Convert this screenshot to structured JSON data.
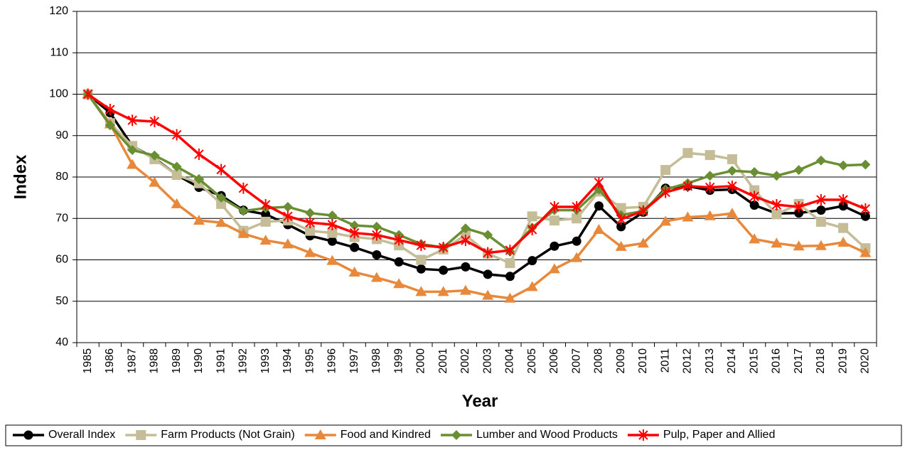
{
  "chart_data": {
    "type": "line",
    "x_label": "Year",
    "y_label": "Index",
    "categories": [
      "1985",
      "1986",
      "1987",
      "1988",
      "1989",
      "1990",
      "1991",
      "1992",
      "1993",
      "1994",
      "1995",
      "1996",
      "1997",
      "1998",
      "1999",
      "2000",
      "2001",
      "2002",
      "2003",
      "2004",
      "2005",
      "2006",
      "2007",
      "2008",
      "2009",
      "2010",
      "2011",
      "2012",
      "2013",
      "2014",
      "2015",
      "2016",
      "2017",
      "2018",
      "2019",
      "2020"
    ],
    "ylim": [
      40,
      120
    ],
    "yticks": [
      40,
      50,
      60,
      70,
      80,
      90,
      100,
      110,
      120
    ],
    "grid": true,
    "legend": "bottom",
    "series": [
      {
        "name": "Overall Index",
        "color": "#000000",
        "marker": "circle",
        "values": [
          100,
          95.5,
          87.5,
          84.5,
          80.5,
          77.5,
          75.5,
          72,
          71,
          68.5,
          65.8,
          64.5,
          63,
          61.2,
          59.5,
          57.8,
          57.5,
          58.3,
          56.5,
          56,
          59.8,
          63.3,
          64.5,
          73,
          68,
          71.5,
          77.3,
          77.8,
          76.8,
          77,
          73.2,
          71.2,
          71.3,
          72,
          73,
          70.5
        ]
      },
      {
        "name": "Farm Products (Not Grain)",
        "color": "#c4bd97",
        "marker": "square",
        "values": [
          100,
          93,
          87.5,
          84.3,
          80.5,
          78.5,
          73.5,
          67,
          69.2,
          69.5,
          67,
          66.5,
          65.5,
          65,
          63.5,
          60,
          62.5,
          66,
          61.5,
          59.2,
          70.5,
          69.5,
          70,
          76.5,
          72.5,
          72.8,
          81.7,
          85.8,
          85.3,
          84.3,
          76.8,
          71,
          73.5,
          69.2,
          67.7,
          62.8
        ]
      },
      {
        "name": "Food and Kindred",
        "color": "#e8883a",
        "marker": "triangle",
        "values": [
          100,
          92.8,
          83,
          78.7,
          73.5,
          69.5,
          69,
          66.3,
          64.7,
          63.8,
          61.7,
          59.8,
          57,
          55.7,
          54.2,
          52.3,
          52.3,
          52.6,
          51.4,
          50.7,
          53.5,
          57.8,
          60.5,
          67.3,
          63.2,
          64,
          69.3,
          70.3,
          70.6,
          71.2,
          65,
          64,
          63.3,
          63.4,
          64.2,
          61.7
        ]
      },
      {
        "name": "Lumber and Wood Products",
        "color": "#6a8f32",
        "marker": "diamond",
        "values": [
          100,
          92.5,
          86.5,
          85.2,
          82.5,
          79.5,
          75,
          71.8,
          72.5,
          72.8,
          71.3,
          70.7,
          68.3,
          68,
          66,
          63.8,
          63,
          67.6,
          66,
          62,
          67.8,
          72,
          72,
          77,
          70.8,
          71.8,
          77,
          78.5,
          80.3,
          81.5,
          81.2,
          80.3,
          81.7,
          84,
          82.8,
          83
        ]
      },
      {
        "name": "Pulp, Paper and Allied",
        "color": "#ff0000",
        "marker": "star",
        "values": [
          100,
          96.3,
          93.7,
          93.4,
          90.2,
          85.5,
          81.8,
          77.3,
          73.3,
          70.5,
          69,
          68.5,
          66.5,
          66,
          64.8,
          63.5,
          63,
          64.7,
          61.7,
          62.3,
          67.3,
          72.8,
          72.8,
          78.7,
          69.8,
          71.8,
          76.3,
          77.8,
          77.5,
          77.8,
          75.3,
          73.3,
          72.8,
          74.5,
          74.5,
          72.3
        ]
      }
    ]
  }
}
